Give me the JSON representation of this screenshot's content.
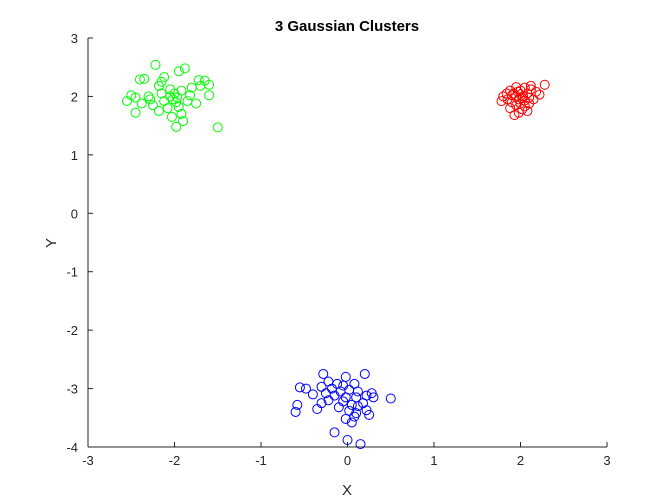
{
  "chart_data": {
    "type": "scatter",
    "title": "3 Gaussian Clusters",
    "xlabel": "X",
    "ylabel": "Y",
    "xlim": [
      -3,
      3
    ],
    "ylim": [
      -4,
      3
    ],
    "xticks": [
      -3,
      -2,
      -1,
      0,
      1,
      2,
      3
    ],
    "yticks": [
      -4,
      -3,
      -2,
      -1,
      0,
      1,
      2,
      3
    ],
    "grid": false,
    "legend": "none",
    "marker": "circle-open",
    "series": [
      {
        "color": "#00ff00",
        "points": [
          [
            -2.22,
            2.54
          ],
          [
            -1.88,
            2.48
          ],
          [
            -1.95,
            2.43
          ],
          [
            -2.35,
            2.3
          ],
          [
            -2.4,
            2.29
          ],
          [
            -2.12,
            2.33
          ],
          [
            -2.15,
            2.25
          ],
          [
            -1.72,
            2.28
          ],
          [
            -1.65,
            2.27
          ],
          [
            -1.6,
            2.2
          ],
          [
            -1.7,
            2.18
          ],
          [
            -1.8,
            2.15
          ],
          [
            -2.18,
            2.18
          ],
          [
            -2.05,
            2.12
          ],
          [
            -1.92,
            2.1
          ],
          [
            -2.5,
            2.02
          ],
          [
            -2.45,
            1.98
          ],
          [
            -2.3,
            2.0
          ],
          [
            -2.0,
            2.05
          ],
          [
            -1.82,
            2.02
          ],
          [
            -1.6,
            2.02
          ],
          [
            -2.55,
            1.92
          ],
          [
            -2.38,
            1.88
          ],
          [
            -2.25,
            1.85
          ],
          [
            -2.12,
            1.92
          ],
          [
            -2.02,
            1.95
          ],
          [
            -1.98,
            1.9
          ],
          [
            -1.85,
            1.92
          ],
          [
            -1.75,
            1.88
          ],
          [
            -2.08,
            1.8
          ],
          [
            -1.95,
            1.82
          ],
          [
            -2.18,
            1.75
          ],
          [
            -2.45,
            1.72
          ],
          [
            -1.92,
            1.7
          ],
          [
            -2.03,
            1.65
          ],
          [
            -1.9,
            1.58
          ],
          [
            -1.98,
            1.48
          ],
          [
            -1.5,
            1.47
          ],
          [
            -2.28,
            1.95
          ],
          [
            -2.15,
            2.05
          ],
          [
            -1.97,
            1.98
          ],
          [
            -2.05,
            2.0
          ]
        ]
      },
      {
        "color": "#ff0000",
        "points": [
          [
            2.28,
            2.2
          ],
          [
            2.12,
            2.18
          ],
          [
            1.95,
            2.16
          ],
          [
            2.05,
            2.15
          ],
          [
            1.88,
            2.1
          ],
          [
            2.0,
            2.1
          ],
          [
            2.18,
            2.08
          ],
          [
            1.84,
            2.05
          ],
          [
            1.92,
            2.05
          ],
          [
            2.08,
            2.05
          ],
          [
            2.22,
            2.03
          ],
          [
            1.8,
            2.0
          ],
          [
            1.95,
            2.0
          ],
          [
            2.03,
            2.0
          ],
          [
            2.1,
            1.98
          ],
          [
            1.85,
            1.95
          ],
          [
            1.98,
            1.95
          ],
          [
            2.05,
            1.93
          ],
          [
            2.15,
            1.95
          ],
          [
            1.78,
            1.92
          ],
          [
            1.9,
            1.9
          ],
          [
            2.0,
            1.88
          ],
          [
            2.1,
            1.88
          ],
          [
            1.95,
            1.85
          ],
          [
            2.05,
            1.83
          ],
          [
            1.88,
            1.8
          ],
          [
            2.02,
            1.78
          ],
          [
            2.08,
            1.75
          ],
          [
            1.98,
            1.72
          ],
          [
            1.93,
            1.68
          ],
          [
            2.12,
            2.12
          ],
          [
            1.97,
            2.08
          ],
          [
            2.02,
            1.97
          ],
          [
            1.9,
            2.02
          ]
        ]
      },
      {
        "color": "#0000ff",
        "points": [
          [
            -0.28,
            -2.75
          ],
          [
            0.2,
            -2.75
          ],
          [
            -0.02,
            -2.8
          ],
          [
            -0.22,
            -2.88
          ],
          [
            -0.12,
            -2.92
          ],
          [
            0.08,
            -2.92
          ],
          [
            -0.05,
            -2.95
          ],
          [
            -0.3,
            -2.97
          ],
          [
            -0.55,
            -2.98
          ],
          [
            -0.48,
            -3.0
          ],
          [
            -0.18,
            -3.0
          ],
          [
            0.02,
            -3.02
          ],
          [
            0.12,
            -3.05
          ],
          [
            -0.08,
            -3.05
          ],
          [
            -0.25,
            -3.08
          ],
          [
            0.28,
            -3.08
          ],
          [
            -0.4,
            -3.1
          ],
          [
            0.22,
            -3.12
          ],
          [
            -0.15,
            -3.12
          ],
          [
            0.5,
            -3.17
          ],
          [
            -0.02,
            -3.15
          ],
          [
            0.1,
            -3.15
          ],
          [
            0.3,
            -3.15
          ],
          [
            -0.22,
            -3.2
          ],
          [
            -0.05,
            -3.22
          ],
          [
            0.18,
            -3.25
          ],
          [
            -0.3,
            -3.25
          ],
          [
            -0.58,
            -3.28
          ],
          [
            0.05,
            -3.28
          ],
          [
            0.12,
            -3.3
          ],
          [
            -0.1,
            -3.32
          ],
          [
            -0.35,
            -3.35
          ],
          [
            0.22,
            -3.37
          ],
          [
            0.02,
            -3.38
          ],
          [
            -0.6,
            -3.4
          ],
          [
            0.1,
            -3.42
          ],
          [
            0.25,
            -3.45
          ],
          [
            0.08,
            -3.48
          ],
          [
            -0.02,
            -3.52
          ],
          [
            0.05,
            -3.58
          ],
          [
            -0.15,
            -3.75
          ],
          [
            0.0,
            -3.88
          ],
          [
            0.15,
            -3.95
          ]
        ]
      }
    ]
  }
}
